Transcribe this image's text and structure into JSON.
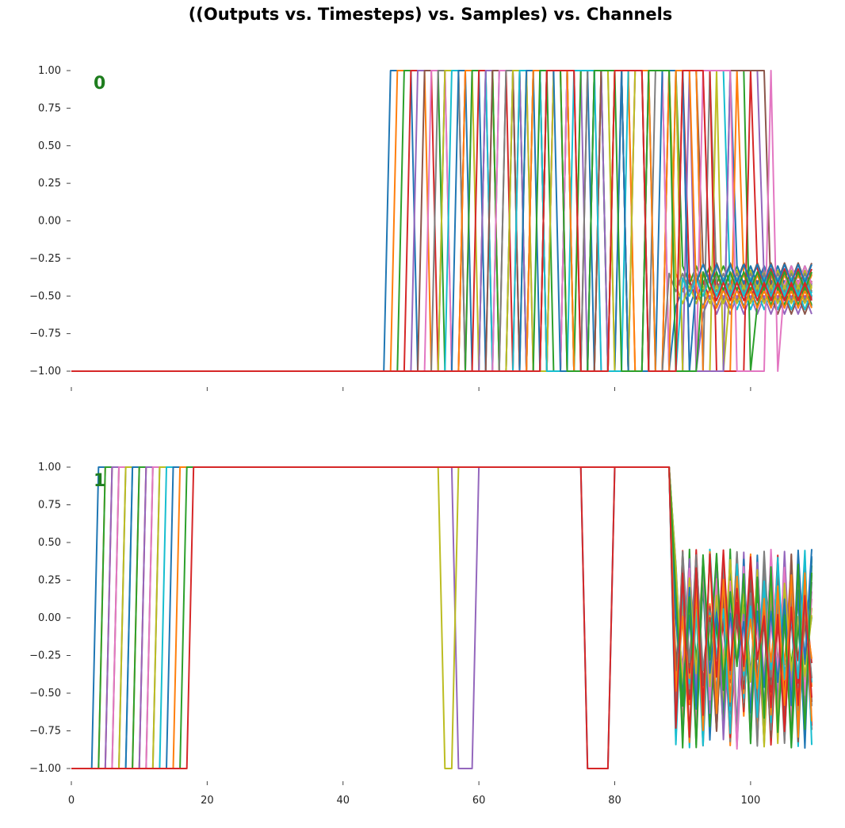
{
  "title": "((Outputs vs. Timesteps) vs. Samples) vs. Channels",
  "colors": [
    "#1f77b4",
    "#ff7f0e",
    "#2ca02c",
    "#d62728",
    "#9467bd",
    "#8c564b",
    "#e377c2",
    "#7f7f7f",
    "#bcbd22",
    "#17becf"
  ],
  "chart_data": [
    {
      "type": "line",
      "panel_label": "0",
      "xlim": [
        0,
        109
      ],
      "ylim": [
        -1.0,
        1.0
      ],
      "yticks": [
        "1.00",
        "0.75",
        "0.50",
        "0.25",
        "0.00",
        "−0.25",
        "−0.50",
        "−0.75",
        "−1.00"
      ],
      "ytick_values": [
        1.0,
        0.75,
        0.5,
        0.25,
        0.0,
        -0.25,
        -0.5,
        -0.75,
        -1.0
      ],
      "xtick_values": [
        0,
        20,
        40,
        60,
        80,
        100
      ],
      "xtick_labels": [
        "",
        "",
        "",
        "",
        "",
        ""
      ],
      "grid": false,
      "series_count": 24,
      "pattern": {
        "base": -1.0,
        "high": 1.0,
        "rise_start": [
          47,
          48,
          49,
          50,
          51,
          52,
          53,
          54,
          55,
          56,
          57,
          58,
          59,
          60,
          61,
          62,
          63,
          64,
          65,
          66,
          67,
          68,
          69,
          70
        ],
        "osc_period": [
          4,
          5,
          6,
          4,
          5,
          6,
          3,
          4,
          5,
          6,
          4,
          5,
          4,
          5,
          6,
          4,
          5,
          6,
          3,
          4,
          5,
          6,
          4,
          5
        ],
        "end_start": [
          88,
          89,
          90,
          91,
          92,
          93,
          94,
          95,
          96,
          97,
          98,
          99,
          100,
          101,
          102,
          103,
          104,
          88,
          89,
          90,
          91,
          92,
          93,
          94
        ],
        "tail_level": [
          -0.45,
          -0.35,
          -0.3,
          -0.4,
          -0.5,
          -0.28,
          -0.38,
          -0.42,
          -0.33,
          -0.47,
          -0.3,
          -0.36,
          -0.44,
          -0.32,
          -0.4,
          -0.5,
          -0.3,
          -0.35,
          -0.43,
          -0.38,
          -0.29,
          -0.46,
          -0.34,
          -0.41
        ]
      }
    },
    {
      "type": "line",
      "panel_label": "1",
      "xlim": [
        0,
        109
      ],
      "ylim": [
        -1.0,
        1.0
      ],
      "yticks": [
        "1.00",
        "0.75",
        "0.50",
        "0.25",
        "0.00",
        "−0.25",
        "−0.50",
        "−0.75",
        "−1.00"
      ],
      "ytick_values": [
        1.0,
        0.75,
        0.5,
        0.25,
        0.0,
        -0.25,
        -0.5,
        -0.75,
        -1.0
      ],
      "xtick_values": [
        0,
        20,
        40,
        60,
        80,
        100
      ],
      "xtick_labels": [
        "0",
        "20",
        "40",
        "60",
        "80",
        "100"
      ],
      "grid": false,
      "series_count": 24,
      "pattern": {
        "base": -1.0,
        "high": 1.0,
        "rise_at": [
          4,
          5,
          5,
          6,
          6,
          7,
          7,
          8,
          8,
          9,
          9,
          10,
          10,
          11,
          11,
          12,
          12,
          13,
          13,
          14,
          15,
          16,
          17,
          18
        ],
        "dips": [
          [
            55,
            56
          ],
          [
            57,
            59
          ],
          [
            76,
            79
          ]
        ],
        "osc_start": 89,
        "osc_high": 0.46,
        "osc_low": -0.87
      }
    }
  ]
}
